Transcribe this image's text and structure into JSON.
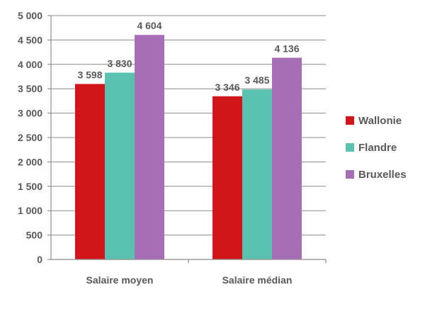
{
  "chart_data": {
    "type": "bar",
    "title": "",
    "xlabel": "",
    "ylabel": "",
    "categories": [
      "Salaire moyen",
      "Salaire médian"
    ],
    "series": [
      {
        "name": "Wallonie",
        "color": "#d0161b",
        "values": [
          3598,
          3346
        ],
        "labels": [
          "3 598",
          "3 346"
        ]
      },
      {
        "name": "Flandre",
        "color": "#5bc2b0",
        "values": [
          3830,
          3485
        ],
        "labels": [
          "3 830",
          "3 485"
        ]
      },
      {
        "name": "Bruxelles",
        "color": "#a66eb4",
        "values": [
          4604,
          4136
        ],
        "labels": [
          "4 604",
          "4 136"
        ]
      }
    ],
    "ylim": [
      0,
      5000
    ],
    "yticks": [
      0,
      500,
      1000,
      1500,
      2000,
      2500,
      3000,
      3500,
      4000,
      4500,
      5000
    ],
    "ytick_labels": [
      "0",
      "500",
      "1 000",
      "1 500",
      "2 000",
      "2 500",
      "3 000",
      "3 500",
      "4 000",
      "4 500",
      "5 000"
    ],
    "grid": true,
    "legend_position": "right"
  }
}
